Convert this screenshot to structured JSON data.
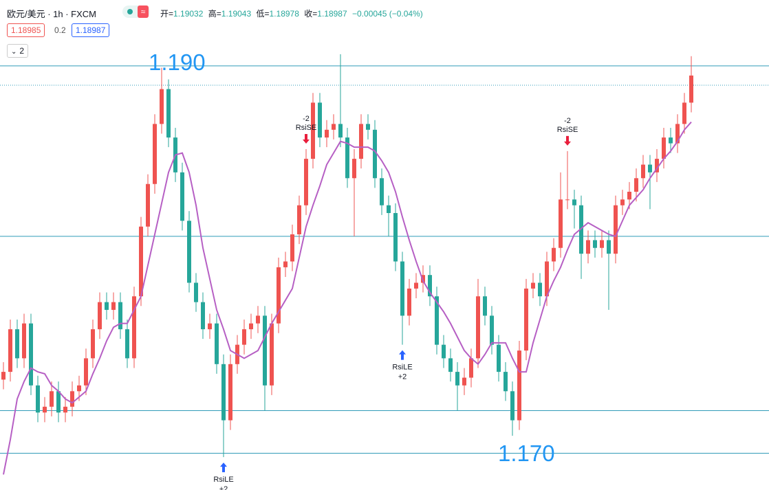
{
  "header": {
    "symbol": "欧元/美元 · 1h · FXCM",
    "ohlc": [
      {
        "label": "开=",
        "value": "1.19032"
      },
      {
        "label": "高=",
        "value": "1.19043"
      },
      {
        "label": "低=",
        "value": "1.18978"
      },
      {
        "label": "收=",
        "value": "1.18987"
      }
    ],
    "change": "−0.00045 (−0.04%)",
    "bid": "1.18985",
    "spread": "0.2",
    "ask": "1.18987",
    "indicator_count": "2"
  },
  "chart_data": {
    "type": "candlestick",
    "ylim": [
      1.1681,
      1.1934
    ],
    "up_color": "#ef5350",
    "down_color": "#26a69a",
    "open": [
      1.1738,
      1.1742,
      1.1764,
      1.1749,
      1.1767,
      1.1735,
      1.1721,
      1.1724,
      1.1732,
      1.1721,
      1.1724,
      1.1732,
      1.1735,
      1.1749,
      1.1764,
      1.1778,
      1.1774,
      1.1778,
      1.1764,
      1.1749,
      1.1781,
      1.1817,
      1.1839,
      1.187,
      1.1888,
      1.1863,
      1.1845,
      1.182,
      1.1788,
      1.1778,
      1.1764,
      1.1767,
      1.1746,
      1.1717,
      1.1746,
      1.1756,
      1.1764,
      1.1767,
      1.1771,
      1.1735,
      1.1767,
      1.1796,
      1.1799,
      1.1813,
      1.1828,
      1.1852,
      1.1881,
      1.1863,
      1.1867,
      1.187,
      1.1863,
      1.1842,
      1.1852,
      1.187,
      1.1867,
      1.1842,
      1.1828,
      1.1824,
      1.1799,
      1.1771,
      1.1785,
      1.1788,
      1.1792,
      1.1781,
      1.1756,
      1.1749,
      1.1742,
      1.1735,
      1.1739,
      1.1749,
      1.1781,
      1.1771,
      1.1756,
      1.1742,
      1.1732,
      1.1717,
      1.1753,
      1.1785,
      1.1788,
      1.1781,
      1.1799,
      1.1806,
      1.1831,
      1.1831,
      1.1828,
      1.1803,
      1.181,
      1.1806,
      1.181,
      1.1803,
      1.1828,
      1.1831,
      1.1835,
      1.1842,
      1.1849,
      1.1845,
      1.1852,
      1.1863,
      1.186,
      1.187,
      1.1881
    ],
    "high": [
      1.1747,
      1.1769,
      1.1769,
      1.1772,
      1.1772,
      1.174,
      1.1729,
      1.1737,
      1.1737,
      1.1729,
      1.1737,
      1.174,
      1.1754,
      1.1769,
      1.1783,
      1.1783,
      1.1783,
      1.1783,
      1.1769,
      1.1786,
      1.1822,
      1.1844,
      1.1875,
      1.1899,
      1.1893,
      1.1868,
      1.185,
      1.1825,
      1.1793,
      1.1783,
      1.1772,
      1.1772,
      1.1751,
      1.1751,
      1.1761,
      1.1769,
      1.1772,
      1.1776,
      1.1776,
      1.1772,
      1.1801,
      1.1804,
      1.1818,
      1.1833,
      1.1857,
      1.1886,
      1.1886,
      1.1872,
      1.1875,
      1.1906,
      1.1868,
      1.1857,
      1.1875,
      1.1875,
      1.1872,
      1.1847,
      1.1833,
      1.1829,
      1.1804,
      1.179,
      1.1793,
      1.1797,
      1.1797,
      1.1786,
      1.1761,
      1.1754,
      1.1747,
      1.1744,
      1.1754,
      1.179,
      1.1786,
      1.1776,
      1.1761,
      1.1747,
      1.1737,
      1.1758,
      1.179,
      1.1793,
      1.1793,
      1.1804,
      1.1811,
      1.1845,
      1.1856,
      1.1836,
      1.1833,
      1.1815,
      1.1815,
      1.1815,
      1.1815,
      1.1833,
      1.1836,
      1.184,
      1.1847,
      1.1854,
      1.1854,
      1.1857,
      1.1868,
      1.1868,
      1.1875,
      1.1886,
      1.1905
    ],
    "low": [
      1.1733,
      1.1737,
      1.1744,
      1.1744,
      1.173,
      1.1716,
      1.1716,
      1.1719,
      1.1716,
      1.1716,
      1.1719,
      1.1727,
      1.173,
      1.1744,
      1.1759,
      1.1769,
      1.1769,
      1.1759,
      1.1744,
      1.1744,
      1.1776,
      1.1812,
      1.1834,
      1.1865,
      1.1858,
      1.184,
      1.1815,
      1.1783,
      1.1773,
      1.1759,
      1.1759,
      1.1741,
      1.1698,
      1.1712,
      1.1741,
      1.1751,
      1.1759,
      1.1762,
      1.1722,
      1.173,
      1.1762,
      1.1791,
      1.1794,
      1.1808,
      1.1823,
      1.1847,
      1.1858,
      1.1858,
      1.1862,
      1.1858,
      1.1837,
      1.1812,
      1.1847,
      1.1862,
      1.1837,
      1.1823,
      1.1812,
      1.1794,
      1.1756,
      1.1766,
      1.178,
      1.1783,
      1.1776,
      1.1751,
      1.1744,
      1.1737,
      1.1722,
      1.173,
      1.1734,
      1.1744,
      1.1766,
      1.1751,
      1.1737,
      1.1727,
      1.1709,
      1.1712,
      1.1748,
      1.178,
      1.1776,
      1.1776,
      1.1794,
      1.1801,
      1.1826,
      1.1816,
      1.179,
      1.1798,
      1.1801,
      1.1801,
      1.1774,
      1.1798,
      1.1823,
      1.1826,
      1.183,
      1.1837,
      1.1826,
      1.184,
      1.1847,
      1.1855,
      1.1855,
      1.1865,
      1.1876
    ],
    "close": [
      1.1742,
      1.1764,
      1.1749,
      1.1767,
      1.1735,
      1.1721,
      1.1724,
      1.1732,
      1.1721,
      1.1724,
      1.1732,
      1.1735,
      1.1749,
      1.1764,
      1.1778,
      1.1774,
      1.1778,
      1.1764,
      1.1749,
      1.1781,
      1.1817,
      1.1839,
      1.187,
      1.1888,
      1.1863,
      1.1845,
      1.182,
      1.1788,
      1.1778,
      1.1764,
      1.1767,
      1.1746,
      1.1717,
      1.1746,
      1.1756,
      1.1764,
      1.1767,
      1.1771,
      1.1735,
      1.1767,
      1.1796,
      1.1799,
      1.1813,
      1.1828,
      1.1852,
      1.1881,
      1.1863,
      1.1867,
      1.187,
      1.1863,
      1.1842,
      1.1852,
      1.187,
      1.1867,
      1.1842,
      1.1828,
      1.1824,
      1.1799,
      1.1771,
      1.1785,
      1.1788,
      1.1792,
      1.1781,
      1.1756,
      1.1749,
      1.1742,
      1.1735,
      1.1739,
      1.1749,
      1.1781,
      1.1771,
      1.1756,
      1.1742,
      1.1732,
      1.1717,
      1.1753,
      1.1785,
      1.1788,
      1.1781,
      1.1799,
      1.1806,
      1.1831,
      1.1831,
      1.1828,
      1.1803,
      1.181,
      1.1806,
      1.181,
      1.1803,
      1.1828,
      1.1831,
      1.1835,
      1.1842,
      1.1849,
      1.1845,
      1.1852,
      1.1863,
      1.186,
      1.187,
      1.1881,
      1.1895
    ],
    "ma": {
      "color": "#b65fc4",
      "values": [
        1.1689,
        1.1707,
        1.1728,
        1.1737,
        1.1744,
        1.1742,
        1.1741,
        1.1735,
        1.1732,
        1.1728,
        1.1726,
        1.1729,
        1.1732,
        1.1741,
        1.1749,
        1.1758,
        1.1765,
        1.1767,
        1.1767,
        1.1774,
        1.1781,
        1.1797,
        1.1813,
        1.1829,
        1.1845,
        1.1854,
        1.1855,
        1.1845,
        1.1828,
        1.1806,
        1.179,
        1.1774,
        1.1764,
        1.1753,
        1.1751,
        1.1749,
        1.1751,
        1.1753,
        1.176,
        1.1767,
        1.1773,
        1.1779,
        1.1785,
        1.1801,
        1.1817,
        1.1828,
        1.1838,
        1.1849,
        1.1855,
        1.1861,
        1.186,
        1.1858,
        1.1858,
        1.1858,
        1.1856,
        1.1851,
        1.1845,
        1.1835,
        1.1822,
        1.181,
        1.1799,
        1.1789,
        1.1783,
        1.1778,
        1.1773,
        1.1767,
        1.176,
        1.1753,
        1.1749,
        1.1746,
        1.1751,
        1.1757,
        1.1757,
        1.1757,
        1.1749,
        1.1742,
        1.1742,
        1.1757,
        1.1769,
        1.1781,
        1.1789,
        1.1796,
        1.1805,
        1.1813,
        1.1816,
        1.1819,
        1.1817,
        1.1815,
        1.1813,
        1.1812,
        1.182,
        1.1828,
        1.1832,
        1.1836,
        1.1842,
        1.1847,
        1.1852,
        1.1856,
        1.1861,
        1.1867,
        1.1871
      ]
    },
    "hlines": {
      "color": "#2f9bb8",
      "values": [
        1.19,
        1.1812,
        1.1722,
        1.17
      ]
    },
    "price_line": {
      "color": "#2f9bb8",
      "value": 1.189
    },
    "annotations": [
      {
        "text": "1.190"
      },
      {
        "text": "1.170"
      }
    ],
    "signals": [
      {
        "label": "RsiLE",
        "qty": "+2",
        "candle": 32,
        "side": "long"
      },
      {
        "label": "RsiSE",
        "qty": "-2",
        "candle": 44,
        "side": "short"
      },
      {
        "label": "RsiLE",
        "qty": "+2",
        "candle": 58,
        "side": "long"
      },
      {
        "label": "RsiSE",
        "qty": "-2",
        "candle": 82,
        "side": "short"
      }
    ]
  }
}
